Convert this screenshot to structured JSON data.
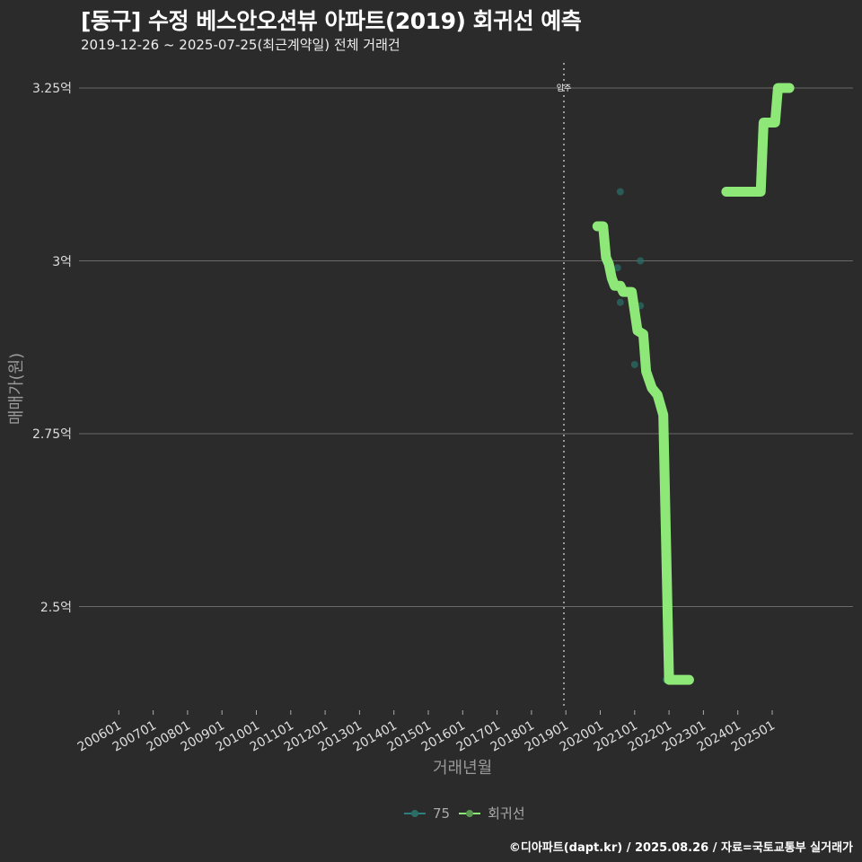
{
  "header": {
    "title": "[동구] 수정 베스안오션뷰 아파트(2019) 회귀선 예측",
    "subtitle": "2019-12-26 ~ 2025-07-25(최근계약일) 전체 거래건"
  },
  "axes": {
    "ylabel": "매매가(원)",
    "xlabel": "거래년월",
    "yticks": [
      {
        "label": "3.25억",
        "value": 3.25
      },
      {
        "label": "3억",
        "value": 3.0
      },
      {
        "label": "2.75억",
        "value": 2.75
      },
      {
        "label": "2.5억",
        "value": 2.5
      }
    ],
    "xticks": [
      "200601",
      "200701",
      "200801",
      "200901",
      "201001",
      "201101",
      "201201",
      "201301",
      "201401",
      "201501",
      "201601",
      "201701",
      "201801",
      "201901",
      "202001",
      "202101",
      "202201",
      "202301",
      "202401",
      "202501"
    ]
  },
  "annotation": {
    "label": "입주",
    "x": "201901"
  },
  "legend": {
    "items": [
      {
        "label": "75",
        "color": "#2a7f7f"
      },
      {
        "label": "회귀선",
        "color": "#8ee878"
      }
    ]
  },
  "caption": "©디아파트(dapt.kr) / 2025.08.26 / 자료=국토교통부 실거래가",
  "colors": {
    "background": "#2b2b2b",
    "grid": "#6a6a6a",
    "regression": "#8ee878",
    "scatter": "#2a6e66"
  },
  "chart_data": {
    "type": "line",
    "title": "[동구] 수정 베스안오션뷰 아파트(2019) 회귀선 예측",
    "subtitle": "2019-12-26 ~ 2025-07-25(최근계약일) 전체 거래건",
    "xlabel": "거래년월",
    "ylabel": "매매가(원)",
    "ylim": [
      2.38,
      3.28
    ],
    "xrange": [
      "200601",
      "202507"
    ],
    "grid": true,
    "legend_position": "bottom",
    "series": [
      {
        "name": "75",
        "type": "scatter",
        "points": [
          {
            "x": "2020-02",
            "y": 3.05
          },
          {
            "x": "2020-07",
            "y": 2.99
          },
          {
            "x": "2020-08",
            "y": 3.1
          },
          {
            "x": "2020-08",
            "y": 2.94
          },
          {
            "x": "2021-01",
            "y": 2.85
          },
          {
            "x": "2021-03",
            "y": 3.0
          },
          {
            "x": "2021-03",
            "y": 2.935
          },
          {
            "x": "2021-12",
            "y": 2.394
          }
        ]
      },
      {
        "name": "회귀선",
        "type": "line",
        "points": [
          {
            "x": "2019-12",
            "y": 3.05
          },
          {
            "x": "2020-02",
            "y": 3.05
          },
          {
            "x": "2020-03",
            "y": 3.005
          },
          {
            "x": "2020-04",
            "y": 2.995
          },
          {
            "x": "2020-05",
            "y": 2.975
          },
          {
            "x": "2020-06",
            "y": 2.964
          },
          {
            "x": "2020-08",
            "y": 2.964
          },
          {
            "x": "2020-09",
            "y": 2.955
          },
          {
            "x": "2020-12",
            "y": 2.955
          },
          {
            "x": "2021-02",
            "y": 2.899
          },
          {
            "x": "2021-04",
            "y": 2.894
          },
          {
            "x": "2021-05",
            "y": 2.84
          },
          {
            "x": "2021-07",
            "y": 2.816
          },
          {
            "x": "2021-09",
            "y": 2.806
          },
          {
            "x": "2021-11",
            "y": 2.777
          },
          {
            "x": "2022-01",
            "y": 2.394
          },
          {
            "x": "2022-08",
            "y": 2.394
          },
          {
            "x": "2023-09",
            "y": 3.1
          },
          {
            "x": "2024-09",
            "y": 3.1
          },
          {
            "x": "2024-10",
            "y": 3.2
          },
          {
            "x": "2025-02",
            "y": 3.2
          },
          {
            "x": "2025-03",
            "y": 3.25
          },
          {
            "x": "2025-07",
            "y": 3.25
          }
        ]
      }
    ]
  }
}
